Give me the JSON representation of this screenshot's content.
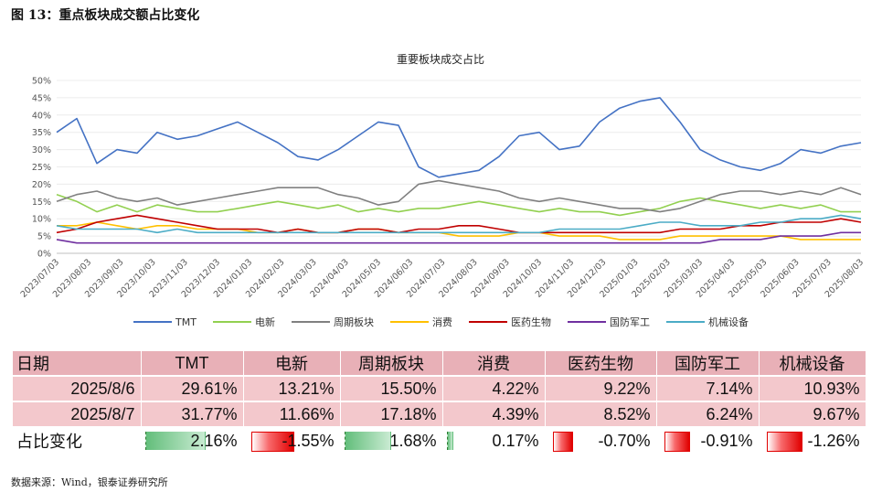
{
  "figure_title": "图 13：重点板块成交额占比变化",
  "source_note": "数据来源：Wind，银泰证券研究所",
  "chart_data": {
    "type": "line",
    "title": "重要板块成交占比",
    "ylim": [
      0,
      50
    ],
    "y_ticks": [
      "0%",
      "5%",
      "10%",
      "15%",
      "20%",
      "25%",
      "30%",
      "35%",
      "40%",
      "45%",
      "50%"
    ],
    "x_ticks": [
      "2023/07/03",
      "2023/08/03",
      "2023/09/03",
      "2023/10/03",
      "2023/11/03",
      "2023/12/03",
      "2024/01/03",
      "2024/02/03",
      "2024/03/03",
      "2024/04/03",
      "2024/05/03",
      "2024/06/03",
      "2024/07/03",
      "2024/08/03",
      "2024/09/03",
      "2024/10/03",
      "2024/11/03",
      "2024/12/03",
      "2025/01/03",
      "2025/02/03",
      "2025/03/03",
      "2025/04/03",
      "2025/05/03",
      "2025/06/03",
      "2025/07/03",
      "2025/08/03"
    ],
    "legend_position": "bottom",
    "series": [
      {
        "name": "TMT",
        "color": "#4472c4",
        "values": [
          35,
          39,
          26,
          30,
          29,
          35,
          33,
          34,
          36,
          38,
          35,
          32,
          28,
          27,
          30,
          34,
          38,
          37,
          25,
          22,
          23,
          24,
          28,
          34,
          35,
          30,
          31,
          38,
          42,
          44,
          45,
          38,
          30,
          27,
          25,
          24,
          26,
          30,
          29,
          31,
          32
        ]
      },
      {
        "name": "电新",
        "color": "#92d050",
        "values": [
          17,
          15,
          12,
          14,
          12,
          14,
          13,
          12,
          12,
          13,
          14,
          15,
          14,
          13,
          14,
          12,
          13,
          12,
          13,
          13,
          14,
          15,
          14,
          13,
          12,
          13,
          12,
          12,
          11,
          12,
          13,
          15,
          16,
          15,
          14,
          13,
          14,
          13,
          14,
          12,
          12
        ]
      },
      {
        "name": "周期板块",
        "color": "#808080",
        "values": [
          15,
          17,
          18,
          16,
          15,
          16,
          14,
          15,
          16,
          17,
          18,
          19,
          19,
          19,
          17,
          16,
          14,
          15,
          20,
          21,
          20,
          19,
          18,
          16,
          15,
          16,
          15,
          14,
          13,
          13,
          12,
          13,
          15,
          17,
          18,
          18,
          17,
          18,
          17,
          19,
          17
        ]
      },
      {
        "name": "消费",
        "color": "#ffc000",
        "values": [
          8,
          8,
          9,
          8,
          7,
          8,
          8,
          7,
          7,
          7,
          6,
          6,
          7,
          6,
          6,
          7,
          7,
          6,
          6,
          6,
          5,
          5,
          5,
          6,
          6,
          5,
          5,
          5,
          4,
          4,
          4,
          5,
          5,
          5,
          5,
          5,
          5,
          4,
          4,
          4,
          4
        ]
      },
      {
        "name": "医药生物",
        "color": "#c00000",
        "values": [
          6,
          7,
          9,
          10,
          11,
          10,
          9,
          8,
          7,
          7,
          7,
          6,
          7,
          6,
          6,
          7,
          7,
          6,
          7,
          7,
          8,
          8,
          7,
          6,
          6,
          6,
          6,
          6,
          6,
          6,
          6,
          7,
          7,
          7,
          8,
          8,
          9,
          9,
          9,
          10,
          9
        ]
      },
      {
        "name": "国防军工",
        "color": "#7030a0",
        "values": [
          4,
          3,
          3,
          3,
          3,
          3,
          3,
          3,
          3,
          3,
          3,
          3,
          3,
          3,
          3,
          3,
          3,
          3,
          3,
          3,
          3,
          3,
          3,
          3,
          3,
          3,
          3,
          3,
          3,
          3,
          3,
          3,
          3,
          4,
          4,
          4,
          5,
          5,
          5,
          6,
          6
        ]
      },
      {
        "name": "机械设备",
        "color": "#4bacc6",
        "values": [
          8,
          7,
          7,
          7,
          7,
          6,
          7,
          6,
          6,
          6,
          6,
          6,
          6,
          6,
          6,
          6,
          6,
          6,
          6,
          6,
          6,
          6,
          6,
          6,
          6,
          7,
          7,
          7,
          7,
          8,
          9,
          9,
          8,
          8,
          8,
          9,
          9,
          10,
          10,
          11,
          10
        ]
      }
    ]
  },
  "table": {
    "header": [
      "日期",
      "TMT",
      "电新",
      "周期板块",
      "消费",
      "医药生物",
      "国防军工",
      "机械设备"
    ],
    "rows": [
      [
        "2025/8/6",
        "29.61%",
        "13.21%",
        "15.50%",
        "4.22%",
        "9.22%",
        "7.14%",
        "10.93%"
      ],
      [
        "2025/8/7",
        "31.77%",
        "11.66%",
        "17.18%",
        "4.39%",
        "8.52%",
        "6.24%",
        "9.67%"
      ]
    ],
    "change_label": "占比变化",
    "changes": [
      "2.16%",
      "-1.55%",
      "1.68%",
      "0.17%",
      "-0.70%",
      "-0.91%",
      "-1.26%"
    ],
    "change_values": [
      2.16,
      -1.55,
      1.68,
      0.17,
      -0.7,
      -0.91,
      -1.26
    ]
  }
}
